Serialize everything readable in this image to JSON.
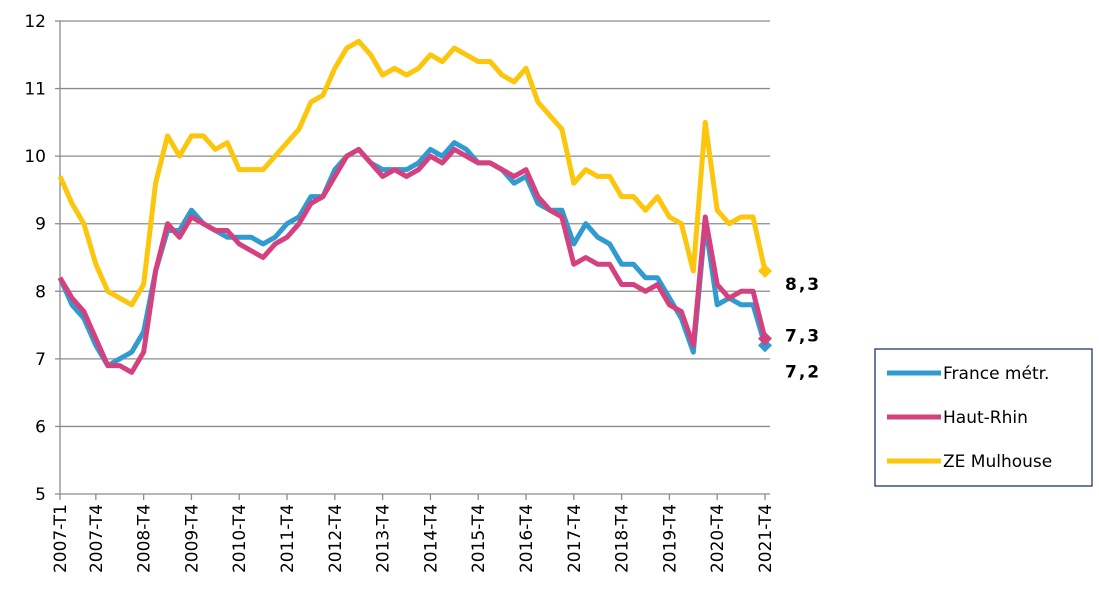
{
  "chart_data": {
    "type": "line",
    "categories": [
      "2007-T1",
      null,
      null,
      "2007-T4",
      null,
      null,
      null,
      "2008-T4",
      null,
      null,
      null,
      "2009-T4",
      null,
      null,
      null,
      "2010-T4",
      null,
      null,
      null,
      "2011-T4",
      null,
      null,
      null,
      "2012-T4",
      null,
      null,
      null,
      "2013-T4",
      null,
      null,
      null,
      "2014-T4",
      null,
      null,
      null,
      "2015-T4",
      null,
      null,
      null,
      "2016-T4",
      null,
      null,
      null,
      "2017-T4",
      null,
      null,
      null,
      "2018-T4",
      null,
      null,
      null,
      "2019-T4",
      null,
      null,
      null,
      "2020-T4",
      null,
      null,
      null,
      "2021-T4"
    ],
    "series": [
      {
        "name": "France métr.",
        "color": "#2f9bd0",
        "values": [
          8.2,
          7.8,
          7.6,
          7.2,
          6.9,
          7.0,
          7.1,
          7.4,
          8.3,
          8.9,
          8.9,
          9.2,
          9.0,
          8.9,
          8.8,
          8.8,
          8.8,
          8.7,
          8.8,
          9.0,
          9.1,
          9.4,
          9.4,
          9.8,
          10.0,
          10.1,
          9.9,
          9.8,
          9.8,
          9.8,
          9.9,
          10.1,
          10.0,
          10.2,
          10.1,
          9.9,
          9.9,
          9.8,
          9.6,
          9.7,
          9.3,
          9.2,
          9.2,
          8.7,
          9.0,
          8.8,
          8.7,
          8.4,
          8.4,
          8.2,
          8.2,
          7.9,
          7.6,
          7.1,
          9.0,
          7.8,
          7.9,
          7.8,
          7.8,
          7.2
        ],
        "value_labels": [
          null,
          null,
          null,
          null,
          null,
          null,
          null,
          null,
          null,
          null,
          null,
          null,
          null,
          null,
          null,
          null,
          null,
          null,
          null,
          null,
          null,
          null,
          null,
          null,
          null,
          null,
          null,
          null,
          null,
          null,
          null,
          null,
          null,
          null,
          null,
          null,
          null,
          null,
          null,
          null,
          null,
          null,
          null,
          null,
          null,
          null,
          null,
          null,
          null,
          null,
          null,
          null,
          null,
          null,
          null,
          null,
          null,
          null,
          null,
          "7,2"
        ]
      },
      {
        "name": "Haut-Rhin",
        "color": "#d5417f",
        "values": [
          8.2,
          7.9,
          7.7,
          7.3,
          6.9,
          6.9,
          6.8,
          7.1,
          8.3,
          9.0,
          8.8,
          9.1,
          9.0,
          8.9,
          8.9,
          8.7,
          8.6,
          8.5,
          8.7,
          8.8,
          9.0,
          9.3,
          9.4,
          9.7,
          10.0,
          10.1,
          9.9,
          9.7,
          9.8,
          9.7,
          9.8,
          10.0,
          9.9,
          10.1,
          10.0,
          9.9,
          9.9,
          9.8,
          9.7,
          9.8,
          9.4,
          9.2,
          9.1,
          8.4,
          8.5,
          8.4,
          8.4,
          8.1,
          8.1,
          8.0,
          8.1,
          7.8,
          7.7,
          7.2,
          9.1,
          8.1,
          7.9,
          8.0,
          8.0,
          7.3
        ],
        "value_labels": [
          null,
          null,
          null,
          null,
          null,
          null,
          null,
          null,
          null,
          null,
          null,
          null,
          null,
          null,
          null,
          null,
          null,
          null,
          null,
          null,
          null,
          null,
          null,
          null,
          null,
          null,
          null,
          null,
          null,
          null,
          null,
          null,
          null,
          null,
          null,
          null,
          null,
          null,
          null,
          null,
          null,
          null,
          null,
          null,
          null,
          null,
          null,
          null,
          null,
          null,
          null,
          null,
          null,
          null,
          null,
          null,
          null,
          null,
          null,
          "7,3"
        ]
      },
      {
        "name": "ZE Mulhouse",
        "color": "#fcc60d",
        "values": [
          9.7,
          9.3,
          9.0,
          8.4,
          8.0,
          7.9,
          7.8,
          8.1,
          9.6,
          10.3,
          10.0,
          10.3,
          10.3,
          10.1,
          10.2,
          9.8,
          9.8,
          9.8,
          10.0,
          10.2,
          10.4,
          10.8,
          10.9,
          11.3,
          11.6,
          11.7,
          11.5,
          11.2,
          11.3,
          11.2,
          11.3,
          11.5,
          11.4,
          11.6,
          11.5,
          11.4,
          11.4,
          11.2,
          11.1,
          11.3,
          10.8,
          10.6,
          10.4,
          9.6,
          9.8,
          9.7,
          9.7,
          9.4,
          9.4,
          9.2,
          9.4,
          9.1,
          9.0,
          8.3,
          10.5,
          9.2,
          9.0,
          9.1,
          9.1,
          8.3
        ],
        "value_labels": [
          null,
          null,
          null,
          null,
          null,
          null,
          null,
          null,
          null,
          null,
          null,
          null,
          null,
          null,
          null,
          null,
          null,
          null,
          null,
          null,
          null,
          null,
          null,
          null,
          null,
          null,
          null,
          null,
          null,
          null,
          null,
          null,
          null,
          null,
          null,
          null,
          null,
          null,
          null,
          null,
          null,
          null,
          null,
          null,
          null,
          null,
          null,
          null,
          null,
          null,
          null,
          null,
          null,
          null,
          null,
          null,
          null,
          null,
          null,
          "8,3"
        ]
      }
    ],
    "ylim": [
      5,
      12
    ],
    "yticks": [
      5,
      6,
      7,
      8,
      9,
      10,
      11,
      12
    ],
    "grid": true,
    "legend": "right"
  }
}
